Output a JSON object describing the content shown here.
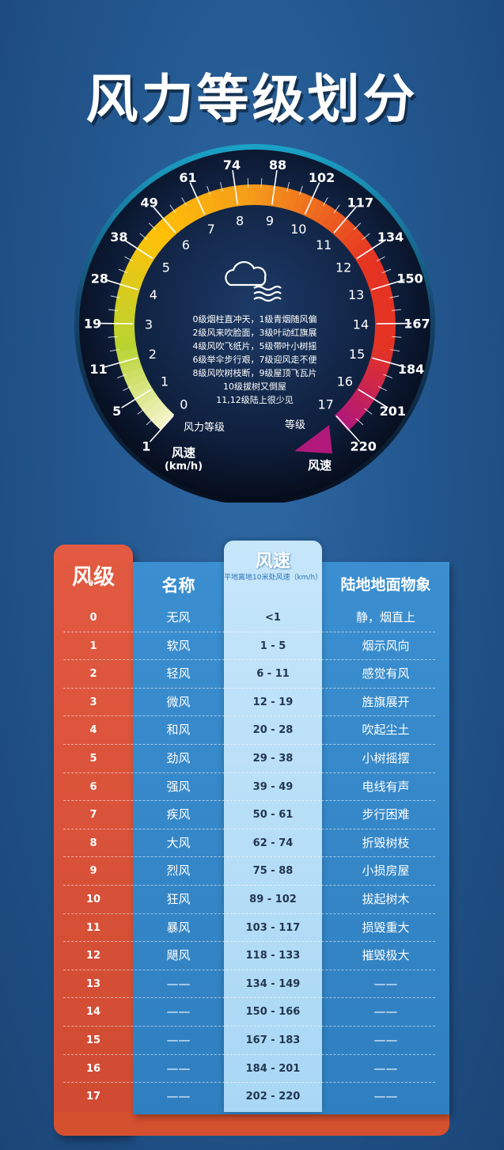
{
  "title": "风力等级划分",
  "gauge": {
    "speed_ticks": [
      "1",
      "5",
      "11",
      "19",
      "28",
      "38",
      "49",
      "61",
      "74",
      "88",
      "102",
      "117",
      "134",
      "150",
      "167",
      "184",
      "201",
      "220"
    ],
    "level_numbers": [
      "0",
      "1",
      "2",
      "3",
      "4",
      "5",
      "6",
      "7",
      "8",
      "9",
      "10",
      "11",
      "12",
      "13",
      "14",
      "15",
      "16",
      "17"
    ],
    "label_level_left": "风力等级",
    "label_level_right": "等级",
    "label_speed_left": "风速",
    "label_speed_unit": "(km/h)",
    "label_speed_right": "风速",
    "icon": "cloud-wind-icon",
    "description": [
      "0级烟柱直冲天，1级青烟随风偏",
      "2级风来吹脸面，3级叶动红旗展",
      "4级风吹飞纸片，5级带叶小树摇",
      "6级举伞步行艰，7级迎风走不便",
      "8级风吹树枝断，9级屋顶飞瓦片",
      "10级拔树又倒屋",
      "11,12级陆上很少见"
    ],
    "colors": {
      "arc_start": "#f5f5cc",
      "arc_green": "#b8d431",
      "arc_yellow": "#ffc107",
      "arc_orange": "#f59a1a",
      "arc_red": "#e53323",
      "arc_end": "#b0187a"
    }
  },
  "table": {
    "header": {
      "level": "风级",
      "name": "名称",
      "speed": "风速",
      "speed_sub": "平地离地10米处风速（km/h）",
      "land": "陆地地面物象"
    },
    "rows": [
      {
        "level": "0",
        "name": "无风",
        "speed": "<1",
        "land": "静，烟直上"
      },
      {
        "level": "1",
        "name": "软风",
        "speed": "1 - 5",
        "land": "烟示风向"
      },
      {
        "level": "2",
        "name": "轻风",
        "speed": "6 - 11",
        "land": "感觉有风"
      },
      {
        "level": "3",
        "name": "微风",
        "speed": "12 - 19",
        "land": "旌旗展开"
      },
      {
        "level": "4",
        "name": "和风",
        "speed": "20 - 28",
        "land": "吹起尘土"
      },
      {
        "level": "5",
        "name": "劲风",
        "speed": "29 - 38",
        "land": "小树摇摆"
      },
      {
        "level": "6",
        "name": "强风",
        "speed": "39 - 49",
        "land": "电线有声"
      },
      {
        "level": "7",
        "name": "疾风",
        "speed": "50 - 61",
        "land": "步行困难"
      },
      {
        "level": "8",
        "name": "大风",
        "speed": "62 - 74",
        "land": "折毁树枝"
      },
      {
        "level": "9",
        "name": "烈风",
        "speed": "75 - 88",
        "land": "小损房屋"
      },
      {
        "level": "10",
        "name": "狂风",
        "speed": "89 - 102",
        "land": "拔起树木"
      },
      {
        "level": "11",
        "name": "暴风",
        "speed": "103 - 117",
        "land": "损毁重大"
      },
      {
        "level": "12",
        "name": "飓风",
        "speed": "118 - 133",
        "land": "摧毁极大"
      },
      {
        "level": "13",
        "name": "——",
        "speed": "134 - 149",
        "land": "——"
      },
      {
        "level": "14",
        "name": "——",
        "speed": "150 - 166",
        "land": "——"
      },
      {
        "level": "15",
        "name": "——",
        "speed": "167 - 183",
        "land": "——"
      },
      {
        "level": "16",
        "name": "——",
        "speed": "184 - 201",
        "land": "——"
      },
      {
        "level": "17",
        "name": "——",
        "speed": "202 - 220",
        "land": "——"
      }
    ],
    "colors": {
      "level_column": "#d9533a",
      "panel": "#3586c8",
      "speed_column": "#b8def7"
    }
  }
}
